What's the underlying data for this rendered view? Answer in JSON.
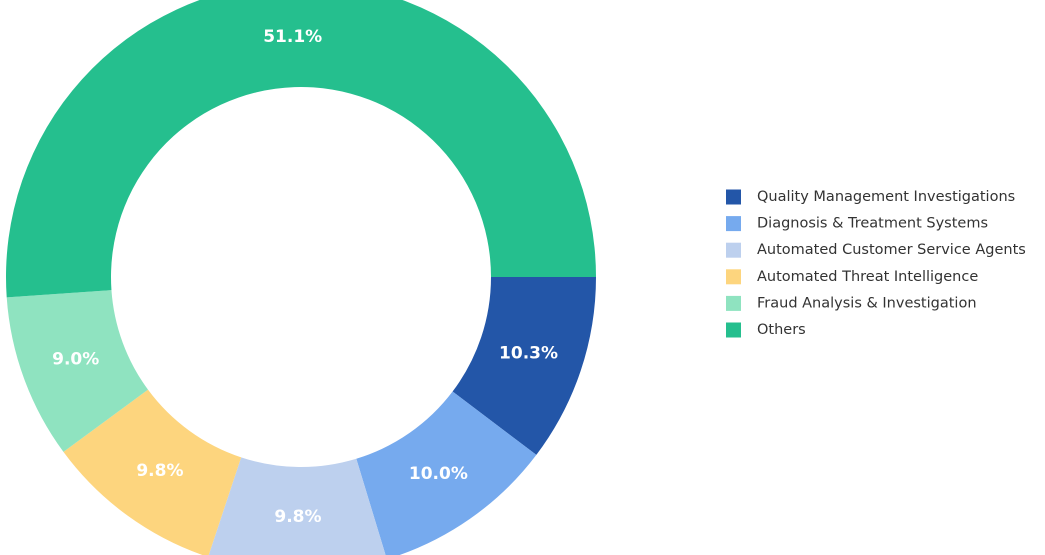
{
  "chart_data": {
    "type": "donut",
    "categories": [
      "Quality Management Investigations",
      "Diagnosis & Treatment Systems",
      "Automated Customer Service Agents",
      "Automated Threat Intelligence",
      "Fraud Analysis & Investigation",
      "Others"
    ],
    "values": [
      10.3,
      10.0,
      9.8,
      9.8,
      9.0,
      51.1
    ],
    "value_labels": [
      "10.3%",
      "10.0%",
      "9.8%",
      "9.8%",
      "9.0%",
      "51.1%"
    ],
    "colors": [
      "#2356a8",
      "#76aaee",
      "#bdd0ee",
      "#fdd57e",
      "#8fe3c0",
      "#25bf8e"
    ],
    "legend": "right"
  }
}
